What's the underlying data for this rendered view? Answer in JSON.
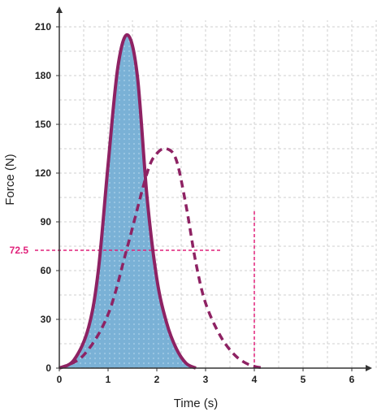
{
  "chart_data": {
    "type": "area",
    "xlabel": "Time (s)",
    "ylabel": "Force (N)",
    "xlim": [
      0,
      6.5
    ],
    "ylim": [
      0,
      215
    ],
    "xticks": [
      "0",
      "1",
      "2",
      "3",
      "4",
      "5",
      "6"
    ],
    "yticks": [
      "0",
      "30",
      "60",
      "90",
      "120",
      "150",
      "180",
      "210"
    ],
    "grid": true,
    "series": [
      {
        "style": "solid-filled",
        "color": "#8e2263",
        "fill": "#7ab1d6",
        "peak": {
          "x": 1.4,
          "y": 205
        },
        "x": [
          0,
          0.3,
          0.6,
          0.8,
          1.0,
          1.2,
          1.4,
          1.6,
          1.8,
          2.0,
          2.2,
          2.4,
          2.6,
          2.8
        ],
        "y": [
          0,
          5,
          25,
          60,
          125,
          185,
          205,
          180,
          105,
          55,
          28,
          12,
          3,
          0
        ]
      },
      {
        "style": "dashed",
        "color": "#8e2263",
        "peak": {
          "x": 2.2,
          "y": 135
        },
        "x": [
          0,
          0.5,
          1.0,
          1.4,
          1.8,
          2.0,
          2.2,
          2.4,
          2.6,
          2.8,
          3.0,
          3.3,
          3.6,
          3.9,
          4.2
        ],
        "y": [
          0,
          8,
          33,
          75,
          120,
          132,
          135,
          128,
          100,
          65,
          40,
          20,
          8,
          2,
          0
        ]
      }
    ],
    "annotations": {
      "horizontal_line": {
        "y": 72.5,
        "label": "72.5",
        "x_end": 3.3,
        "color": "#e0207a"
      },
      "vertical_line": {
        "x": 4,
        "label": "4",
        "y_top": 98,
        "color": "#e0207a"
      }
    }
  }
}
